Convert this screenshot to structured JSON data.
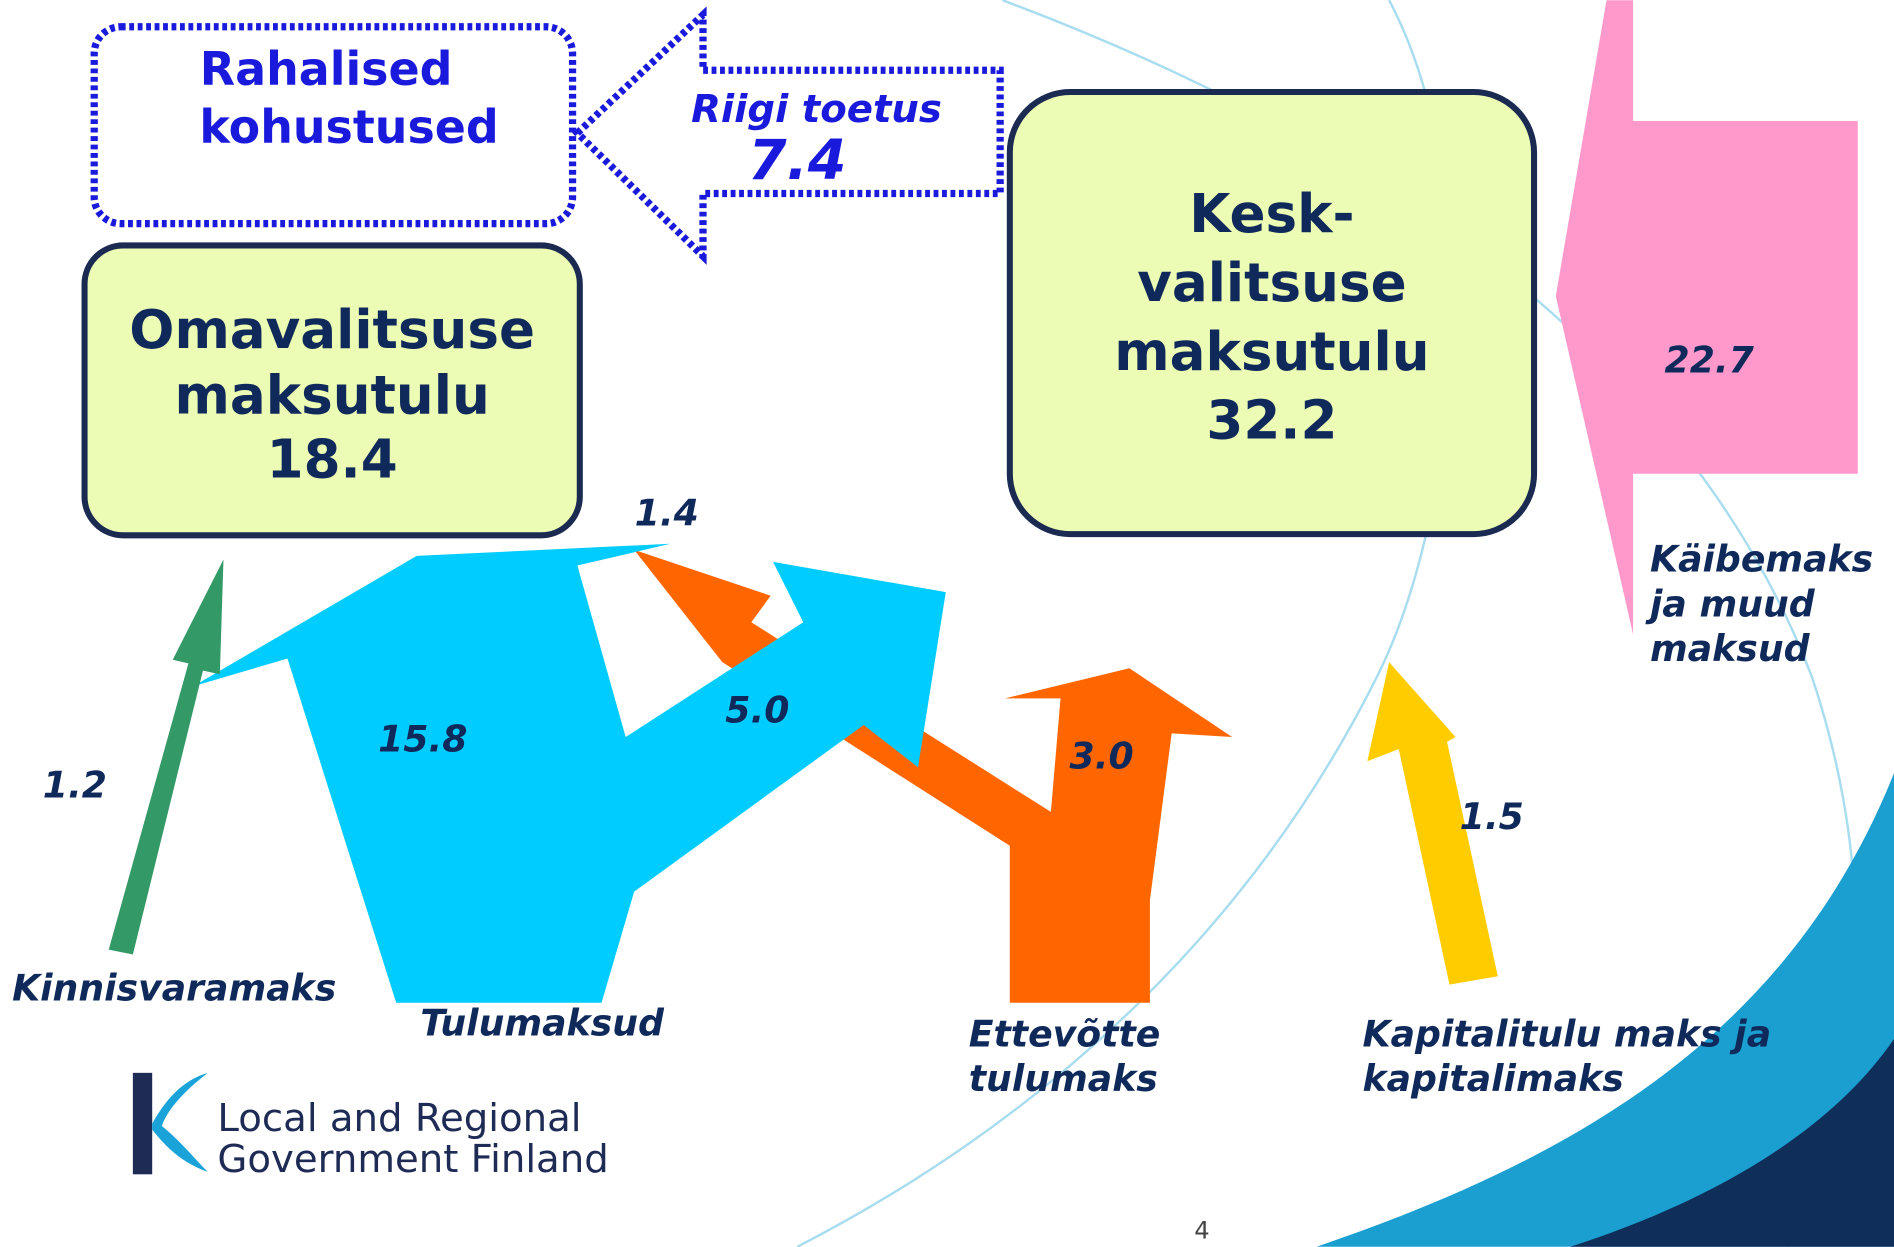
{
  "boxes": [
    {
      "lines": [
        "Rahalised",
        "kohustused"
      ]
    },
    {
      "lines": [
        "Omavalitsuse",
        "maksutulu"
      ],
      "value": "18.4"
    },
    {
      "lines": [
        "Kesk-",
        "valitsuse",
        "maksutulu"
      ],
      "value": "32.2"
    }
  ],
  "flows": [
    {
      "label": "Riigi toetus",
      "value": "7.4"
    },
    {
      "label": "Kinnisvaramaks",
      "value": "1.2"
    },
    {
      "label": "Tulumaksud",
      "value": "15.8",
      "shares": [
        "1.4",
        "5.0"
      ]
    },
    {
      "label": [
        "Ettevõtte",
        "tulumaks"
      ],
      "value": "3.0"
    },
    {
      "label": [
        "Kapitalitulu maks ja",
        "kapitalimaks"
      ],
      "value": "1.5"
    },
    {
      "label": [
        "Käibemaks",
        "ja muud",
        "maksud"
      ],
      "value": "22.7"
    }
  ],
  "logo": [
    "Local and Regional",
    "Government Finland"
  ],
  "page_number": "4"
}
